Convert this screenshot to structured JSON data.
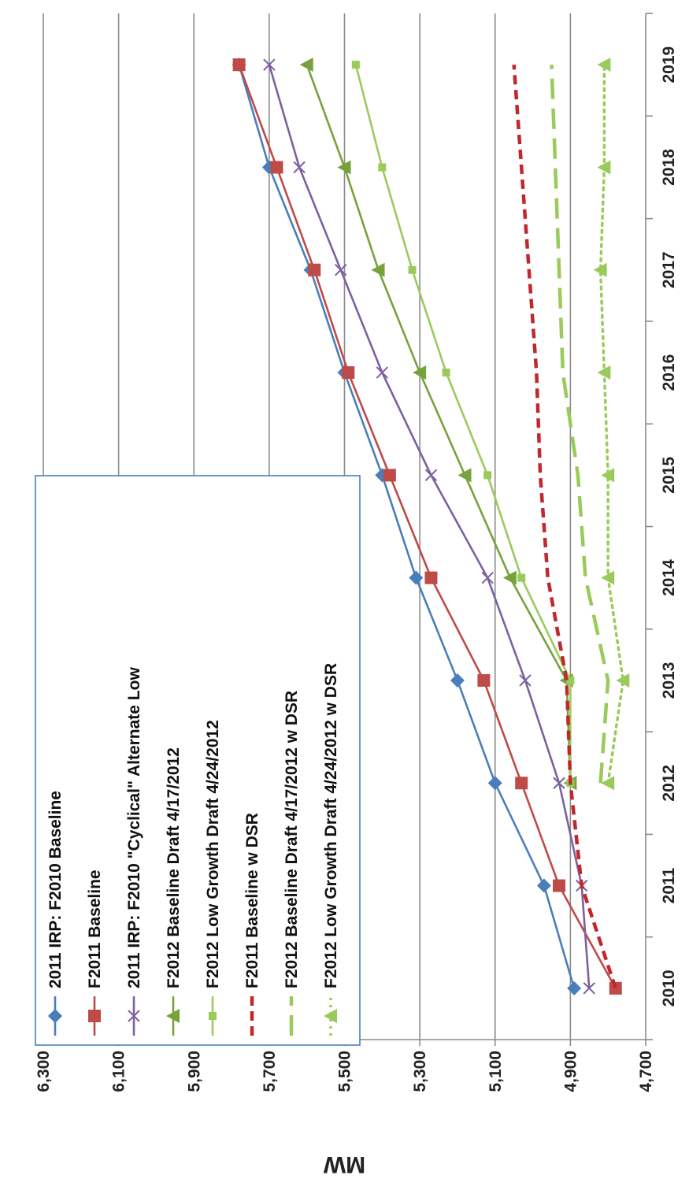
{
  "chart_data": {
    "type": "line",
    "title": "",
    "xlabel": "",
    "ylabel": "MW",
    "categories": [
      "2010",
      "2011",
      "2012",
      "2013",
      "2014",
      "2015",
      "2016",
      "2017",
      "2018",
      "2019"
    ],
    "y_ticks": [
      "4,700",
      "4,900",
      "5,100",
      "5,300",
      "5,500",
      "5,700",
      "5,900",
      "6,100",
      "6,300"
    ],
    "ylim": [
      4700,
      6300
    ],
    "grid": true,
    "legend_position": "top-left",
    "series": [
      {
        "name": "2011 IRP: F2010 Baseline",
        "color": "#4a7ebb",
        "style": "solid",
        "marker": "diamond",
        "values": [
          4890,
          4970,
          5100,
          5200,
          5310,
          5400,
          5500,
          5590,
          5700,
          5780
        ]
      },
      {
        "name": "F2011 Baseline",
        "color": "#be4b48",
        "style": "solid",
        "marker": "square",
        "values": [
          4780,
          4930,
          5030,
          5130,
          5270,
          5380,
          5490,
          5580,
          5680,
          5780
        ]
      },
      {
        "name": "2011 IRP: F2010 \"Cyclical\" Alternate Low",
        "color": "#7d60a0",
        "style": "solid",
        "marker": "x",
        "values": [
          4850,
          4870,
          4930,
          5020,
          5120,
          5270,
          5400,
          5510,
          5620,
          5700
        ]
      },
      {
        "name": "F2012 Baseline Draft 4/17/2012",
        "color": "#76a23c",
        "style": "solid",
        "marker": "triangle",
        "values": [
          null,
          null,
          4900,
          4910,
          5060,
          5180,
          5300,
          5410,
          5500,
          5600
        ]
      },
      {
        "name": "F2012 Low Growth Draft 4/24/2012",
        "color": "#9acb5a",
        "style": "solid",
        "marker": "square-small",
        "values": [
          null,
          null,
          4900,
          4900,
          5030,
          5120,
          5230,
          5320,
          5400,
          5470
        ]
      },
      {
        "name": "F2011 Baseline w DSR",
        "color": "#c0282d",
        "style": "dashed-short",
        "marker": "none",
        "values": [
          4780,
          4870,
          4900,
          4910,
          4960,
          4980,
          4990,
          5010,
          5030,
          5050
        ]
      },
      {
        "name": "F2012 Baseline Draft 4/17/2012 w DSR",
        "color": "#9acb5a",
        "style": "dashed-long",
        "marker": "none",
        "values": [
          null,
          null,
          4820,
          4800,
          4860,
          4880,
          4920,
          4930,
          4940,
          4950
        ]
      },
      {
        "name": "F2012 Low Growth Draft 4/24/2012 w DSR",
        "color": "#9acb5a",
        "style": "dotted",
        "marker": "triangle",
        "values": [
          null,
          null,
          4800,
          4760,
          4800,
          4800,
          4810,
          4820,
          4810,
          4810
        ]
      }
    ]
  }
}
